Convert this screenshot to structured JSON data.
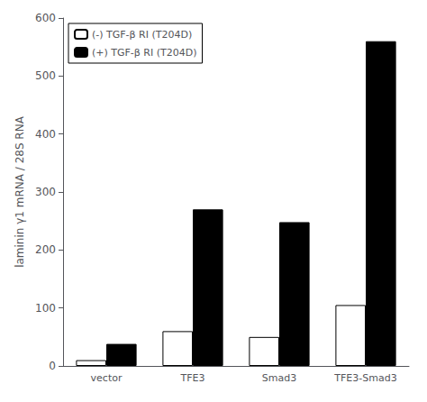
{
  "chart_data": {
    "type": "bar",
    "categories": [
      "vector",
      "TFE3",
      "Smad3",
      "TFE3-Smad3"
    ],
    "series": [
      {
        "name": "(-) TGF-β RI (T204D)",
        "color": "#ffffff",
        "values": [
          10,
          60,
          50,
          105
        ]
      },
      {
        "name": "(+) TGF-β RI (T204D)",
        "color": "#000000",
        "values": [
          38,
          270,
          248,
          560
        ]
      }
    ],
    "ylabel": "laminin γ1 mRNA / 28S RNA",
    "ylim": [
      0,
      600
    ],
    "yticks": [
      0,
      100,
      200,
      300,
      400,
      500,
      600
    ],
    "legend": "upper left",
    "grid": false
  }
}
